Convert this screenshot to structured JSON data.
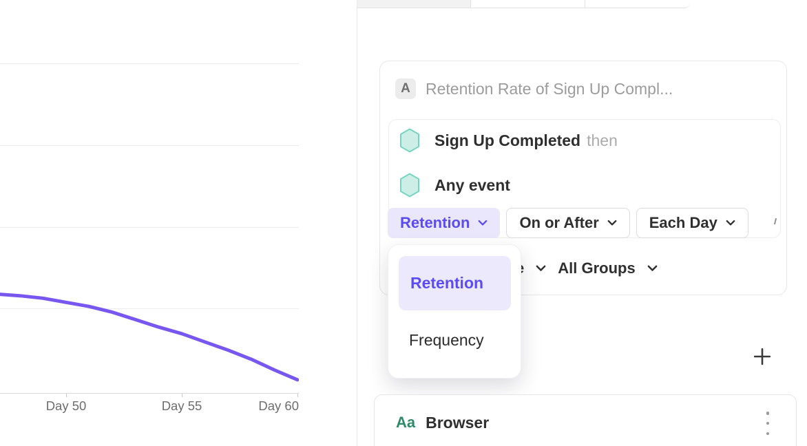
{
  "chart_data": {
    "type": "line",
    "title": "",
    "x_tick_labels": [
      "Day 50",
      "Day 55",
      "Day 60"
    ],
    "x_tick_days": [
      50,
      55,
      60
    ],
    "grid": true,
    "y_axis_visible": false,
    "assumed_pct_per_gridline": 5,
    "series": [
      {
        "name": "Retention",
        "color": "#7857F0",
        "x_days": [
          47,
          48,
          49,
          50,
          51,
          52,
          53,
          54,
          55,
          56,
          57,
          58,
          59,
          60
        ],
        "values_est_pct": [
          6.0,
          5.9,
          5.75,
          5.5,
          5.25,
          4.9,
          4.45,
          4.0,
          3.6,
          3.1,
          2.6,
          2.05,
          1.4,
          0.8
        ]
      }
    ]
  },
  "right_panel": {
    "top_tabs": {
      "cells": [
        "",
        "",
        ""
      ]
    },
    "query_card": {
      "badge": "A",
      "title_placeholder": "Retention Rate of Sign Up Compl...",
      "events": [
        {
          "icon": "hexagon-icon",
          "name": "Sign Up Completed",
          "suffix": "then"
        },
        {
          "icon": "hexagon-icon",
          "name": "Any event",
          "suffix": ""
        }
      ],
      "controls": [
        {
          "label": "Retention",
          "selected": true
        },
        {
          "label": "On or After",
          "selected": false
        },
        {
          "label": "Each Day",
          "selected": false
        }
      ],
      "measured_row": {
        "clipped_text": "e",
        "group_filter": "All Groups"
      }
    },
    "metric_dropdown": {
      "items": [
        {
          "label": "Retention",
          "selected": true
        },
        {
          "label": "Frequency",
          "selected": false
        }
      ]
    },
    "property_card": {
      "type_badge": "Aa",
      "name": "Browser"
    },
    "colors": {
      "accent_purple": "#5A4CF0",
      "accent_purple_bg": "#EAE6FC",
      "line_purple": "#7857F0",
      "hexagon_fill": "#CDEEE6",
      "hexagon_stroke": "#74D6C0",
      "property_type_green": "#2E8A68"
    }
  }
}
